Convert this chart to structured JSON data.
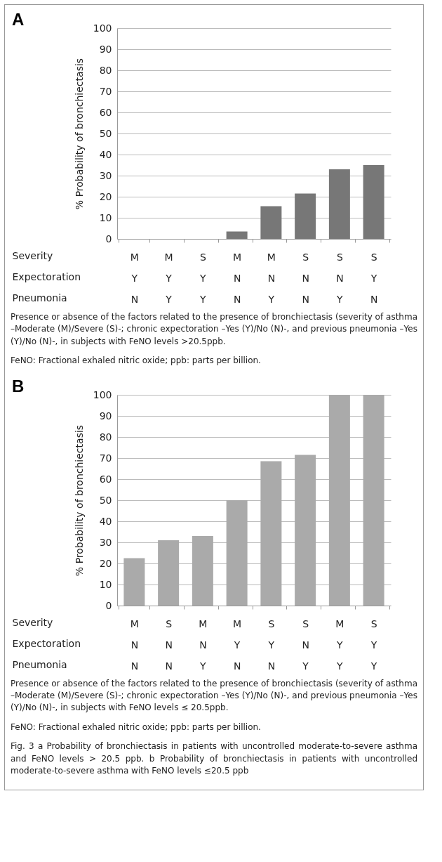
{
  "chart_data": [
    {
      "type": "bar",
      "title": "A",
      "ylabel": "% Probability of bronchiectasis",
      "xlabel": "Severity\nExpectoration\nPneumonia",
      "categories": [
        "M\nY\nN",
        "M\nY\nY",
        "S\nY\nY",
        "M\nN\nN",
        "M\nN\nY",
        "S\nN\nN",
        "S\nN\nY",
        "S\nY\nN"
      ],
      "values": [
        0,
        0,
        0,
        3.5,
        15.5,
        21.5,
        33,
        35
      ],
      "color": "#777777",
      "ylim": [
        0,
        100
      ],
      "yticks": [
        0,
        10,
        20,
        30,
        40,
        50,
        60,
        70,
        80,
        90,
        100
      ],
      "grid": "y",
      "annotations": [
        "Presence or absence of the factors related to the presence of bronchiectasis (severity of asthma –Moderate (M)/Severe (S)-; chronic expectoration –Yes (Y)/No (N)-, and previous pneumonia –Yes (Y)/No (N)-, in subjects with FeNO levels >20.5ppb.",
        "FeNO: Fractional exhaled nitric oxide; ppb: parts per billion."
      ]
    },
    {
      "type": "bar",
      "title": "B",
      "ylabel": "% Probability of bronchiectasis",
      "xlabel": "Severity\nExpectoration\nPneumonia",
      "categories": [
        "M\nN\nN",
        "S\nN\nN",
        "M\nN\nY",
        "M\nY\nN",
        "S\nY\nN",
        "S\nN\nY",
        "M\nY\nY",
        "S\nY\nY"
      ],
      "values": [
        22.5,
        31,
        33,
        50,
        68.5,
        71.5,
        100,
        100
      ],
      "color": "#aaaaaa",
      "ylim": [
        0,
        100
      ],
      "yticks": [
        0,
        10,
        20,
        30,
        40,
        50,
        60,
        70,
        80,
        90,
        100
      ],
      "grid": "y",
      "annotations": [
        "Presence or absence of the factors related to the presence of bronchiectasis (severity of asthma –Moderate (M)/Severe (S)-; chronic expectoration –Yes (Y)/No (N)-, and previous pneumonia –Yes (Y)/No (N)-, in subjects with FeNO levels ≤ 20.5ppb.",
        "FeNO: Fractional exhaled nitric oxide; ppb: parts per billion.",
        "Fig. 3 a Probability of bronchiectasis in patients with uncontrolled moderate-to-severe asthma and FeNO levels > 20.5 ppb. b Probability of bronchiectasis in patients with uncontrolled moderate-to-severe asthma with FeNO levels ≤20.5 ppb"
      ]
    }
  ]
}
